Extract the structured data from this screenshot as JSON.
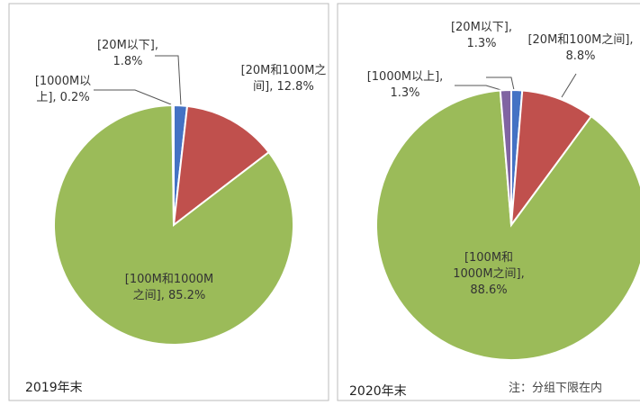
{
  "chart_data": [
    {
      "type": "pie",
      "title": "2019年末",
      "categories": [
        "[20M以下]",
        "[20M和100M之间]",
        "[100M和1000M之间]",
        "[1000M以上]"
      ],
      "values": [
        1.8,
        12.8,
        85.2,
        0.2
      ],
      "value_labels": [
        "[20M以下], 1.8%",
        "[20M和100M之间], 12.8%",
        "[100M和1000M之间], 85.2%",
        "[1000M以上], 0.2%"
      ],
      "colors": [
        "#4472c4",
        "#c0504d",
        "#9bbb59",
        "#8064a2"
      ]
    },
    {
      "type": "pie",
      "title": "2020年末",
      "note": "注：分组下限在内",
      "categories": [
        "[20M以下]",
        "[20M和100M之间]",
        "[100M和1000M之间]",
        "[1000M以上]"
      ],
      "values": [
        1.3,
        8.8,
        88.6,
        1.3
      ],
      "value_labels": [
        "[20M以下], 1.3%",
        "[20M和100M之间], 8.8%",
        "[100M和1000M之间], 88.6%",
        "[1000M以上], 1.3%"
      ],
      "colors": [
        "#4472c4",
        "#c0504d",
        "#9bbb59",
        "#8064a2"
      ]
    }
  ]
}
